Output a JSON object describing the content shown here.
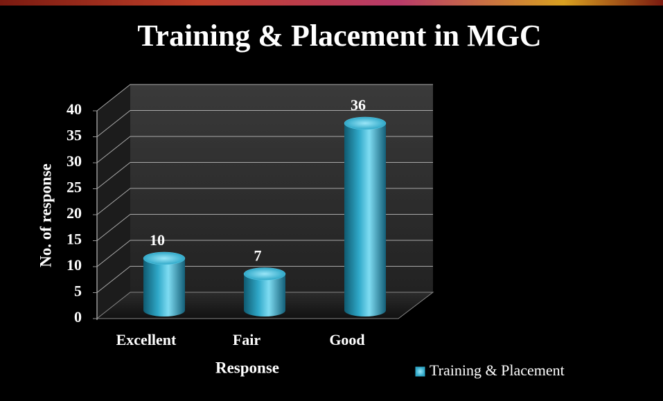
{
  "chart_data": {
    "type": "bar",
    "title": "Training & Placement in MGC",
    "categories": [
      "Excellent",
      "Fair",
      "Good"
    ],
    "series": [
      {
        "name": "Training & Placement",
        "color": "#2fa8c8",
        "values": [
          10,
          7,
          36
        ]
      }
    ],
    "x_label": "Response",
    "y_label": "No. of response",
    "ylim": [
      0,
      40
    ],
    "yticks": [
      0,
      5,
      10,
      15,
      20,
      25,
      30,
      35,
      40
    ],
    "grid": true,
    "legend": "bottom-right",
    "data_labels": true
  }
}
